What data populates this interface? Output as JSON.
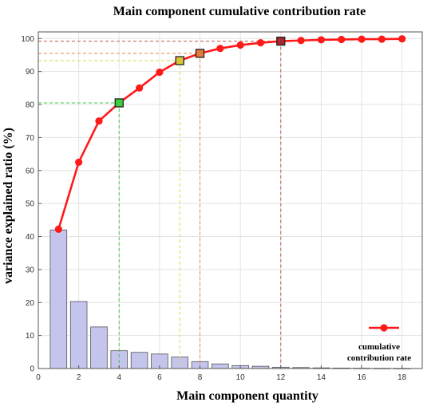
{
  "chart_data": {
    "type": "bar+line",
    "title": "Main component cumulative contribution rate",
    "xlabel": "Main component quantity",
    "ylabel": "variance explained ratio (%)",
    "xlim": [
      0,
      19
    ],
    "ylim": [
      0,
      102
    ],
    "xticks": [
      0,
      2,
      4,
      6,
      8,
      10,
      12,
      14,
      16,
      18
    ],
    "yticks": [
      0,
      10,
      20,
      30,
      40,
      50,
      60,
      70,
      80,
      90,
      100
    ],
    "grid": true,
    "bars": {
      "x": [
        1,
        2,
        3,
        4,
        5,
        6,
        7,
        8,
        9,
        10,
        11,
        12,
        13,
        14,
        15,
        16,
        17,
        18
      ],
      "values": [
        42,
        20.3,
        12.6,
        5.4,
        4.9,
        4.4,
        3.5,
        2.1,
        1.4,
        0.9,
        0.7,
        0.4,
        0.3,
        0.2,
        0.15,
        0.1,
        0.05,
        0.03
      ],
      "color": "#c4c4ec"
    },
    "series": [
      {
        "name": "cumulative contribution rate",
        "color": "#ff1a1a",
        "x": [
          1,
          2,
          3,
          4,
          5,
          6,
          7,
          8,
          9,
          10,
          11,
          12,
          13,
          14,
          15,
          16,
          17,
          18
        ],
        "values": [
          42.2,
          62.5,
          75,
          80.5,
          85,
          89.8,
          93.3,
          95.5,
          97,
          98,
          98.7,
          99.2,
          99.4,
          99.6,
          99.7,
          99.8,
          99.8,
          99.9
        ]
      }
    ],
    "highlights": [
      {
        "x": 4,
        "y": 80.5,
        "color": "#3ecf3e",
        "line_color": "#3ecf3e"
      },
      {
        "x": 7,
        "y": 93.3,
        "color": "#d8c43a",
        "line_color": "#d8d840"
      },
      {
        "x": 8,
        "y": 95.5,
        "color": "#e27a3c",
        "line_color": "#e8864a"
      },
      {
        "x": 12,
        "y": 99.2,
        "color": "#a8282e",
        "line_color": "#c0584a"
      }
    ],
    "legend": {
      "placement": "bottom-right",
      "lines": [
        "cumulative",
        "contribution rate"
      ]
    }
  }
}
